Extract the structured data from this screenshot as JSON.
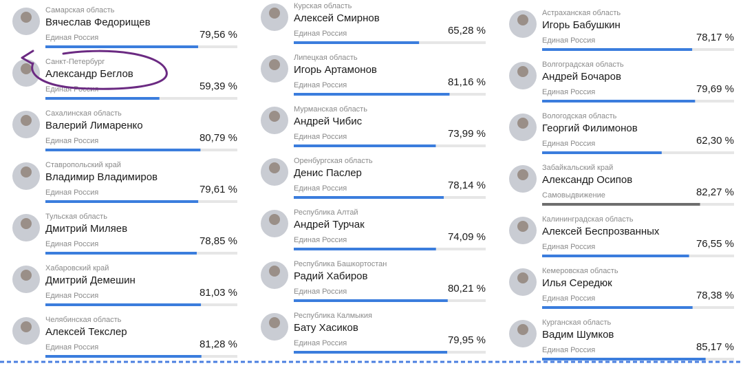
{
  "columns": [
    [
      {
        "region": "Самарская область",
        "name": "Вячеслав Федорищев",
        "party": "Единая Россия",
        "percent": {
          "value": 79.56,
          "label": "79,56 %"
        },
        "color": "#3b7ddd"
      },
      {
        "region": "Санкт-Петербург",
        "name": "Александр Беглов",
        "party": "Единая Россия",
        "percent": {
          "value": 59.39,
          "label": "59,39 %"
        },
        "color": "#3b7ddd"
      },
      {
        "region": "Сахалинская область",
        "name": "Валерий Лимаренко",
        "party": "Единая Россия",
        "percent": {
          "value": 80.79,
          "label": "80,79 %"
        },
        "color": "#3b7ddd"
      },
      {
        "region": "Ставропольский край",
        "name": "Владимир Владимиров",
        "party": "Единая Россия",
        "percent": {
          "value": 79.61,
          "label": "79,61 %"
        },
        "color": "#3b7ddd"
      },
      {
        "region": "Тульская область",
        "name": "Дмитрий Миляев",
        "party": "Единая Россия",
        "percent": {
          "value": 78.85,
          "label": "78,85 %"
        },
        "color": "#3b7ddd"
      },
      {
        "region": "Хабаровский край",
        "name": "Дмитрий Демешин",
        "party": "Единая Россия",
        "percent": {
          "value": 81.03,
          "label": "81,03 %"
        },
        "color": "#3b7ddd"
      },
      {
        "region": "Челябинская область",
        "name": "Алексей Текслер",
        "party": "Единая Россия",
        "percent": {
          "value": 81.28,
          "label": "81,28 %"
        },
        "color": "#3b7ddd"
      }
    ],
    [
      {
        "region": "Курская область",
        "name": "Алексей Смирнов",
        "party": "Единая Россия",
        "percent": {
          "value": 65.28,
          "label": "65,28 %"
        },
        "color": "#3b7ddd"
      },
      {
        "region": "Липецкая область",
        "name": "Игорь Артамонов",
        "party": "Единая Россия",
        "percent": {
          "value": 81.16,
          "label": "81,16 %"
        },
        "color": "#3b7ddd"
      },
      {
        "region": "Мурманская область",
        "name": "Андрей Чибис",
        "party": "Единая Россия",
        "percent": {
          "value": 73.99,
          "label": "73,99 %"
        },
        "color": "#3b7ddd"
      },
      {
        "region": "Оренбургская область",
        "name": "Денис Паслер",
        "party": "Единая Россия",
        "percent": {
          "value": 78.14,
          "label": "78,14 %"
        },
        "color": "#3b7ddd"
      },
      {
        "region": "Республика Алтай",
        "name": "Андрей Турчак",
        "party": "Единая Россия",
        "percent": {
          "value": 74.09,
          "label": "74,09 %"
        },
        "color": "#3b7ddd"
      },
      {
        "region": "Республика Башкортостан",
        "name": "Радий Хабиров",
        "party": "Единая Россия",
        "percent": {
          "value": 80.21,
          "label": "80,21 %"
        },
        "color": "#3b7ddd"
      },
      {
        "region": "Республика Калмыкия",
        "name": "Бату Хасиков",
        "party": "Единая Россия",
        "percent": {
          "value": 79.95,
          "label": "79,95 %"
        },
        "color": "#3b7ddd"
      }
    ],
    [
      {
        "region": "Астраханская область",
        "name": "Игорь Бабушкин",
        "party": "Единая Россия",
        "percent": {
          "value": 78.17,
          "label": "78,17 %"
        },
        "color": "#3b7ddd"
      },
      {
        "region": "Волгоградская область",
        "name": "Андрей Бочаров",
        "party": "Единая Россия",
        "percent": {
          "value": 79.69,
          "label": "79,69 %"
        },
        "color": "#3b7ddd"
      },
      {
        "region": "Вологодская область",
        "name": "Георгий Филимонов",
        "party": "Единая Россия",
        "percent": {
          "value": 62.3,
          "label": "62,30 %"
        },
        "color": "#3b7ddd"
      },
      {
        "region": "Забайкальский край",
        "name": "Александр Осипов",
        "party": "Самовыдвижение",
        "percent": {
          "value": 82.27,
          "label": "82,27 %"
        },
        "color": "#6e6e6e"
      },
      {
        "region": "Калининградская область",
        "name": "Алексей Беспрозванных",
        "party": "Единая Россия",
        "percent": {
          "value": 76.55,
          "label": "76,55 %"
        },
        "color": "#3b7ddd"
      },
      {
        "region": "Кемеровская область",
        "name": "Илья Середюк",
        "party": "Единая Россия",
        "percent": {
          "value": 78.38,
          "label": "78,38 %"
        },
        "color": "#3b7ddd"
      },
      {
        "region": "Курганская область",
        "name": "Вадим Шумков",
        "party": "Единая Россия",
        "percent": {
          "value": 85.17,
          "label": "85,17 %"
        },
        "color": "#3b7ddd"
      }
    ]
  ]
}
